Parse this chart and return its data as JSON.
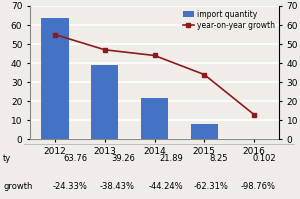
{
  "years": [
    "2012",
    "2013",
    "2014",
    "2015",
    "2016"
  ],
  "import_quantity": [
    63.76,
    39.26,
    21.89,
    8.25,
    0.102
  ],
  "yoy_growth": [
    55,
    47,
    44,
    34,
    13
  ],
  "bar_color": "#4472C4",
  "line_color": "#8B1A1A",
  "marker_color": "#8B1A1A",
  "ylim_left": [
    0,
    70
  ],
  "yticks_left": [
    0,
    10,
    20,
    30,
    40,
    50,
    60,
    70
  ],
  "legend_labels": [
    "import quantity",
    "year-on-year growth"
  ],
  "background_color": "#f0ede8",
  "grid_color": "#ffffff",
  "table_row1_label": "ty",
  "table_row2_label": "growth",
  "table_row1_vals": [
    "63.76",
    "39.26",
    "21.89",
    "8.25",
    "0.102"
  ],
  "table_row2_vals": [
    "-24.33%",
    "-38.43%",
    "-44.24%",
    "-62.31%",
    "-98.76%"
  ]
}
